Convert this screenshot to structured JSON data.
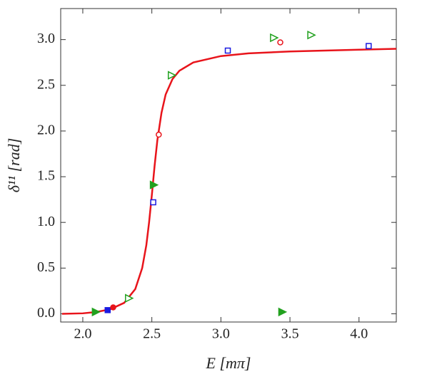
{
  "chart_data": {
    "type": "scatter",
    "xlabel": "E [mπ]",
    "ylabel": "δ¹¹ [rad]",
    "xlim": [
      1.84,
      4.27
    ],
    "ylim": [
      -0.09,
      3.34
    ],
    "xticks": [
      {
        "value": 2,
        "label": "2.0"
      },
      {
        "value": 2.5,
        "label": "2.5"
      },
      {
        "value": 3,
        "label": "3.0"
      },
      {
        "value": 3.5,
        "label": "3.5"
      },
      {
        "value": 4,
        "label": "4.0"
      }
    ],
    "yticks": [
      {
        "value": 0,
        "label": "0.0"
      },
      {
        "value": 0.5,
        "label": "0.5"
      },
      {
        "value": 1,
        "label": "1.0"
      },
      {
        "value": 1.5,
        "label": "1.5"
      },
      {
        "value": 2,
        "label": "2.0"
      },
      {
        "value": 2.5,
        "label": "2.5"
      },
      {
        "value": 3,
        "label": "3.0"
      }
    ],
    "series": [
      {
        "marker": "line",
        "color": "#e8141b",
        "x": [
          1.85,
          2.0,
          2.1,
          2.2,
          2.3,
          2.38,
          2.43,
          2.46,
          2.48,
          2.5,
          2.52,
          2.54,
          2.57,
          2.6,
          2.65,
          2.7,
          2.8,
          3.0,
          3.2,
          3.5,
          4.0,
          4.27
        ],
        "values": [
          0.0,
          0.005,
          0.02,
          0.05,
          0.12,
          0.27,
          0.5,
          0.75,
          1.0,
          1.3,
          1.62,
          1.9,
          2.2,
          2.4,
          2.57,
          2.66,
          2.75,
          2.82,
          2.85,
          2.87,
          2.89,
          2.9
        ]
      },
      {
        "marker": "triangle-filled",
        "color": "#22a11f",
        "x": [
          2.09,
          2.51,
          3.44
        ],
        "values": [
          0.02,
          1.41,
          0.02
        ]
      },
      {
        "marker": "triangle-open",
        "color": "#22a11f",
        "x": [
          2.33,
          2.64,
          3.38,
          3.65
        ],
        "values": [
          0.17,
          2.61,
          3.02,
          3.05
        ]
      },
      {
        "marker": "square-filled",
        "color": "#1a1ae0",
        "x": [
          2.18
        ],
        "values": [
          0.04
        ]
      },
      {
        "marker": "square-open",
        "color": "#1a1ae0",
        "x": [
          2.51,
          3.05,
          4.07
        ],
        "values": [
          1.22,
          2.88,
          2.93
        ]
      },
      {
        "marker": "circle-filled",
        "color": "#e8141b",
        "x": [
          2.22
        ],
        "values": [
          0.07
        ]
      },
      {
        "marker": "circle-open",
        "color": "#e8141b",
        "x": [
          2.55,
          3.43
        ],
        "values": [
          1.96,
          2.97
        ]
      }
    ]
  }
}
